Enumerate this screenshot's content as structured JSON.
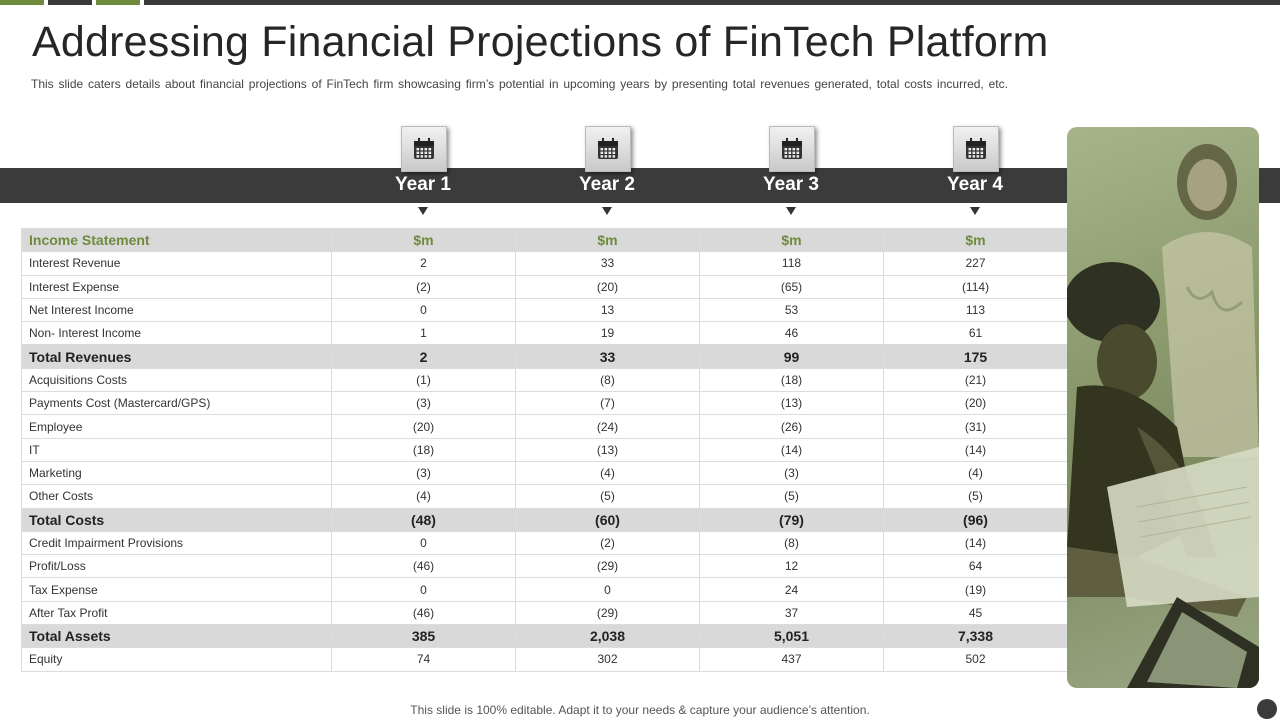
{
  "title": "Addressing Financial Projections of FinTech Platform",
  "subtitle": "This slide caters details about financial projections of FinTech firm showcasing firm’s potential in upcoming years by presenting total revenues  generated,  total costs incurred, etc.",
  "years": [
    "Year 1",
    "Year 2",
    "Year 3",
    "Year 4"
  ],
  "table": {
    "header": {
      "label": "Income Statement",
      "values": [
        "$m",
        "$m",
        "$m",
        "$m"
      ]
    },
    "rows": [
      {
        "label": "Interest Revenue",
        "values": [
          "2",
          "33",
          "118",
          "227"
        ],
        "total": false
      },
      {
        "label": "Interest  Expense",
        "values": [
          "(2)",
          "(20)",
          "(65)",
          "(114)"
        ],
        "total": false
      },
      {
        "label": "Net Interest Income",
        "values": [
          "0",
          "13",
          "53",
          "113"
        ],
        "total": false
      },
      {
        "label": "Non- Interest Income",
        "values": [
          "1",
          "19",
          "46",
          "61"
        ],
        "total": false
      },
      {
        "label": "Total Revenues",
        "values": [
          "2",
          "33",
          "99",
          "175"
        ],
        "total": true
      },
      {
        "label": "Acquisitions Costs",
        "values": [
          "(1)",
          "(8)",
          "(18)",
          "(21)"
        ],
        "total": false
      },
      {
        "label": "Payments Cost (Mastercard/GPS)",
        "values": [
          "(3)",
          "(7)",
          "(13)",
          "(20)"
        ],
        "total": false
      },
      {
        "label": "Employee",
        "values": [
          "(20)",
          "(24)",
          "(26)",
          "(31)"
        ],
        "total": false
      },
      {
        "label": "IT",
        "values": [
          "(18)",
          "(13)",
          "(14)",
          "(14)"
        ],
        "total": false
      },
      {
        "label": "Marketing",
        "values": [
          "(3)",
          "(4)",
          "(3)",
          "(4)"
        ],
        "total": false
      },
      {
        "label": "Other Costs",
        "values": [
          "(4)",
          "(5)",
          "(5)",
          "(5)"
        ],
        "total": false
      },
      {
        "label": "Total Costs",
        "values": [
          "(48)",
          "(60)",
          "(79)",
          "(96)"
        ],
        "total": true
      },
      {
        "label": "Credit Impairment Provisions",
        "values": [
          "0",
          "(2)",
          "(8)",
          "(14)"
        ],
        "total": false
      },
      {
        "label": "Profit/Loss",
        "values": [
          "(46)",
          "(29)",
          "12",
          "64"
        ],
        "total": false
      },
      {
        "label": "Tax Expense",
        "values": [
          "0",
          "0",
          "24",
          "(19)"
        ],
        "total": false
      },
      {
        "label": "After Tax Profit",
        "values": [
          "(46)",
          "(29)",
          "37",
          "45"
        ],
        "total": false
      },
      {
        "label": "Total Assets",
        "values": [
          "385",
          "2,038",
          "5,051",
          "7,338"
        ],
        "total": true
      },
      {
        "label": "Equity",
        "values": [
          "74",
          "302",
          "437",
          "502"
        ],
        "total": false
      }
    ]
  },
  "footer": "This slide is 100% editable. Adapt it to your needs & capture your audience’s attention.",
  "colors": {
    "accent": "#6e8b3d",
    "band": "#3b3b3b",
    "row_shade": "#d9d9d9"
  },
  "icons": {
    "year": "calendar-icon",
    "marker": "triangle-down-icon"
  }
}
